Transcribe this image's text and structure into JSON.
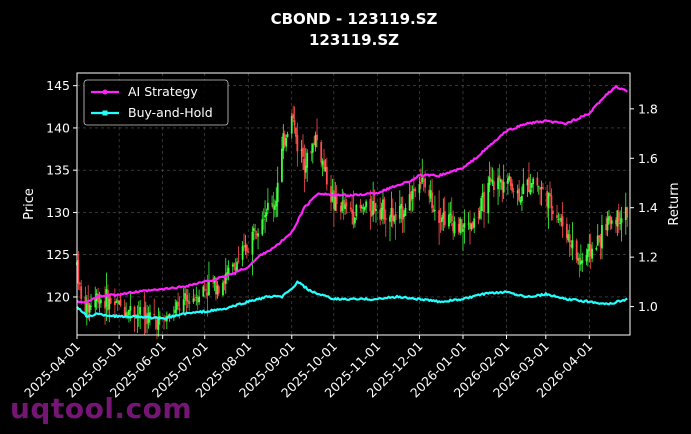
{
  "chart_data": {
    "type": "line",
    "title": "CBOND - 123119.SZ",
    "subtitle": "123119.SZ",
    "ylabel": "Price",
    "y2label": "Return",
    "ylim": [
      115.5,
      146.5
    ],
    "y2lim": [
      0.885,
      1.945
    ],
    "yticks": [
      120,
      125,
      130,
      135,
      140,
      145
    ],
    "y2ticks": [
      1.0,
      1.2,
      1.4,
      1.6,
      1.8
    ],
    "xticks": [
      "2025-04-01",
      "2025-05-01",
      "2025-06-01",
      "2025-07-01",
      "2025-08-01",
      "2025-09-01",
      "2025-10-01",
      "2025-11-01",
      "2025-12-01",
      "2026-01-01",
      "2026-02-01",
      "2026-03-01",
      "2026-04-01"
    ],
    "grid": true,
    "legend_position": "top-left",
    "colors": {
      "up": "#3dff3d",
      "down": "#ff4d4d",
      "ai": "#ff22ff",
      "bh": "#22ffff"
    },
    "series": [
      {
        "name": "AI Strategy",
        "axis": "right",
        "points": [
          [
            "2025-04-01",
            1.02
          ],
          [
            "2025-04-10",
            1.02
          ],
          [
            "2025-04-15",
            1.04
          ],
          [
            "2025-05-01",
            1.05
          ],
          [
            "2025-05-15",
            1.06
          ],
          [
            "2025-06-01",
            1.07
          ],
          [
            "2025-06-15",
            1.08
          ],
          [
            "2025-07-01",
            1.1
          ],
          [
            "2025-07-15",
            1.12
          ],
          [
            "2025-08-01",
            1.16
          ],
          [
            "2025-08-10",
            1.21
          ],
          [
            "2025-08-20",
            1.24
          ],
          [
            "2025-09-01",
            1.3
          ],
          [
            "2025-09-10",
            1.4
          ],
          [
            "2025-09-20",
            1.46
          ],
          [
            "2025-10-01",
            1.45
          ],
          [
            "2025-10-15",
            1.45
          ],
          [
            "2025-11-01",
            1.46
          ],
          [
            "2025-11-15",
            1.49
          ],
          [
            "2025-11-25",
            1.51
          ],
          [
            "2025-12-01",
            1.53
          ],
          [
            "2025-12-15",
            1.53
          ],
          [
            "2026-01-01",
            1.56
          ],
          [
            "2026-01-10",
            1.6
          ],
          [
            "2026-01-20",
            1.65
          ],
          [
            "2026-02-01",
            1.71
          ],
          [
            "2026-02-15",
            1.74
          ],
          [
            "2026-03-01",
            1.75
          ],
          [
            "2026-03-15",
            1.74
          ],
          [
            "2026-04-01",
            1.78
          ],
          [
            "2026-04-10",
            1.84
          ],
          [
            "2026-04-20",
            1.89
          ],
          [
            "2026-04-28",
            1.87
          ]
        ]
      },
      {
        "name": "Buy-and-Hold",
        "axis": "right",
        "points": [
          [
            "2025-04-01",
            1.0
          ],
          [
            "2025-04-08",
            0.96
          ],
          [
            "2025-04-15",
            0.97
          ],
          [
            "2025-05-01",
            0.96
          ],
          [
            "2025-05-15",
            0.96
          ],
          [
            "2025-06-01",
            0.95
          ],
          [
            "2025-06-15",
            0.97
          ],
          [
            "2025-07-01",
            0.98
          ],
          [
            "2025-07-15",
            0.99
          ],
          [
            "2025-08-01",
            1.02
          ],
          [
            "2025-08-15",
            1.04
          ],
          [
            "2025-08-25",
            1.04
          ],
          [
            "2025-09-01",
            1.07
          ],
          [
            "2025-09-05",
            1.1
          ],
          [
            "2025-09-15",
            1.06
          ],
          [
            "2025-10-01",
            1.03
          ],
          [
            "2025-10-15",
            1.03
          ],
          [
            "2025-11-01",
            1.03
          ],
          [
            "2025-11-15",
            1.04
          ],
          [
            "2025-12-01",
            1.03
          ],
          [
            "2025-12-15",
            1.02
          ],
          [
            "2026-01-01",
            1.03
          ],
          [
            "2026-01-15",
            1.05
          ],
          [
            "2026-02-01",
            1.06
          ],
          [
            "2026-02-15",
            1.04
          ],
          [
            "2026-03-01",
            1.05
          ],
          [
            "2026-03-15",
            1.03
          ],
          [
            "2026-04-01",
            1.02
          ],
          [
            "2026-04-15",
            1.01
          ],
          [
            "2026-04-28",
            1.03
          ]
        ]
      },
      {
        "name": "Price",
        "axis": "left",
        "style": "candlestick",
        "points": [
          [
            "2025-04-01",
            124
          ],
          [
            "2025-04-05",
            118
          ],
          [
            "2025-04-15",
            120
          ],
          [
            "2025-05-01",
            119
          ],
          [
            "2025-05-15",
            118
          ],
          [
            "2025-06-01",
            117
          ],
          [
            "2025-06-15",
            119
          ],
          [
            "2025-07-01",
            121
          ],
          [
            "2025-07-15",
            122
          ],
          [
            "2025-08-01",
            126
          ],
          [
            "2025-08-10",
            130
          ],
          [
            "2025-08-20",
            131
          ],
          [
            "2025-08-26",
            138
          ],
          [
            "2025-09-01",
            142
          ],
          [
            "2025-09-05",
            138
          ],
          [
            "2025-09-12",
            136
          ],
          [
            "2025-09-18",
            139
          ],
          [
            "2025-10-01",
            131
          ],
          [
            "2025-10-15",
            130
          ],
          [
            "2025-11-01",
            131
          ],
          [
            "2025-11-15",
            129
          ],
          [
            "2025-12-01",
            134
          ],
          [
            "2025-12-15",
            130
          ],
          [
            "2026-01-01",
            128
          ],
          [
            "2026-01-10",
            129
          ],
          [
            "2026-01-20",
            133
          ],
          [
            "2026-02-01",
            134
          ],
          [
            "2026-02-10",
            132
          ],
          [
            "2026-02-20",
            134
          ],
          [
            "2026-03-01",
            132
          ],
          [
            "2026-03-15",
            128
          ],
          [
            "2026-03-25",
            124
          ],
          [
            "2026-04-05",
            126
          ],
          [
            "2026-04-15",
            129
          ],
          [
            "2026-04-28",
            130
          ]
        ]
      }
    ]
  },
  "watermark": "uqtool.com"
}
